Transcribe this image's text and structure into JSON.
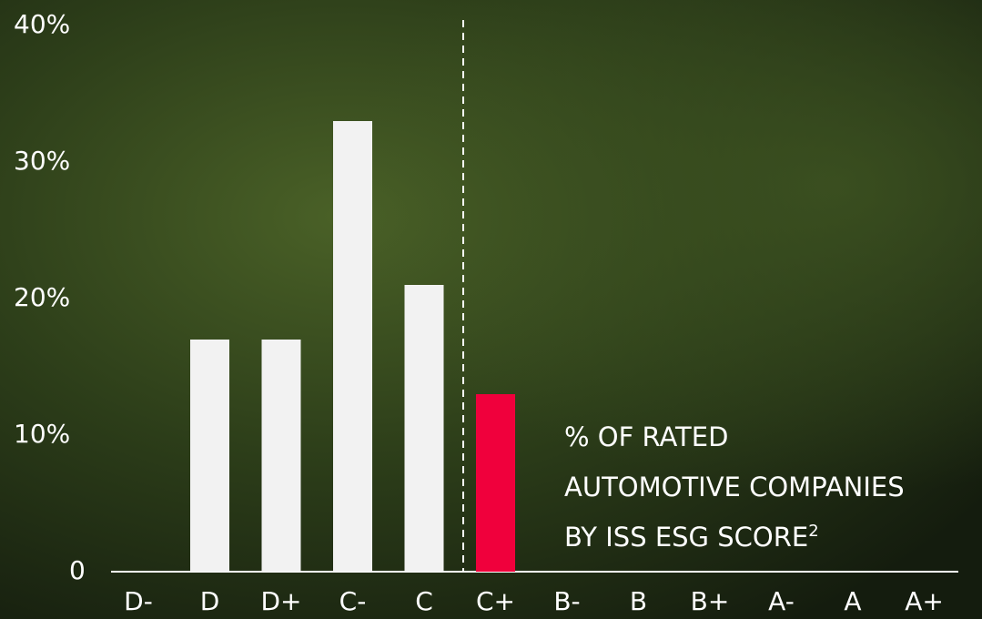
{
  "chart_data": {
    "type": "bar",
    "categories": [
      "D-",
      "D",
      "D+",
      "C-",
      "C",
      "C+",
      "B-",
      "B",
      "B+",
      "A-",
      "A",
      "A+"
    ],
    "values": [
      0,
      17,
      17,
      33,
      21,
      13,
      0,
      0,
      0,
      0,
      0,
      0
    ],
    "colors": [
      "#f2f2f2",
      "#f2f2f2",
      "#f2f2f2",
      "#f2f2f2",
      "#f2f2f2",
      "#f0003c",
      "#f2f2f2",
      "#f2f2f2",
      "#f2f2f2",
      "#f2f2f2",
      "#f2f2f2",
      "#f2f2f2"
    ],
    "ylim": [
      0,
      40
    ],
    "yticks": [
      0,
      {
        "value": 10,
        "label": "10%"
      },
      {
        "value": 20,
        "label": "20%"
      },
      {
        "value": 30,
        "label": "30%"
      },
      {
        "value": 40,
        "label": "40%"
      }
    ],
    "grid": false,
    "annotation": [
      "% OF RATED",
      "AUTOMOTIVE COMPANIES",
      "BY ISS ESG SCORE"
    ],
    "annotation_footnote": "2"
  }
}
